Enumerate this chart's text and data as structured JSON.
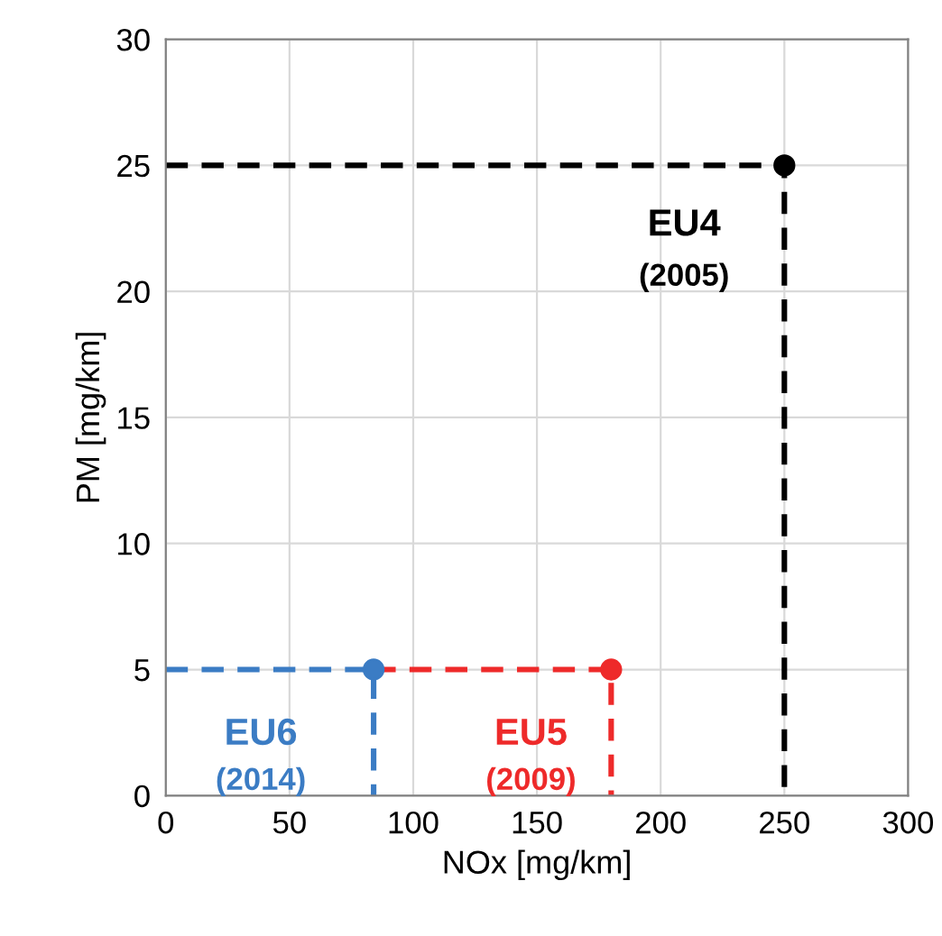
{
  "chart_data": {
    "type": "scatter",
    "xlabel": "NOx [mg/km]",
    "ylabel": "PM [mg/km]",
    "xlim": [
      0,
      300
    ],
    "xticks": [
      0,
      50,
      100,
      150,
      200,
      250,
      300
    ],
    "ylim": [
      0,
      30
    ],
    "yticks": [
      0,
      5,
      10,
      15,
      20,
      25,
      30
    ],
    "grid": true,
    "series": [
      {
        "type": "line",
        "line_style": "dashed",
        "marker": "none",
        "color": "#000000",
        "x": [
          0,
          250,
          250
        ],
        "values": [
          25,
          25,
          0
        ]
      },
      {
        "type": "line",
        "line_style": "dashed",
        "marker": "none",
        "color": "#ee2a2a",
        "x": [
          84,
          180,
          180
        ],
        "values": [
          5,
          5,
          0
        ]
      },
      {
        "type": "line",
        "line_style": "dashed",
        "marker": "none",
        "color": "#3b7cc4",
        "x": [
          0,
          84,
          84
        ],
        "values": [
          5,
          5,
          0
        ]
      },
      {
        "marker": "circle",
        "name": "EU4",
        "color": "#000000",
        "x": [
          250
        ],
        "values": [
          25
        ]
      },
      {
        "marker": "circle",
        "name": "EU5",
        "color": "#ee2a2a",
        "x": [
          180
        ],
        "values": [
          5
        ]
      },
      {
        "marker": "circle",
        "name": "EU6",
        "color": "#3b7cc4",
        "x": [
          84
        ],
        "values": [
          5
        ]
      }
    ],
    "annotations": [
      "(2005)",
      "(2009)",
      "(2014)"
    ]
  }
}
